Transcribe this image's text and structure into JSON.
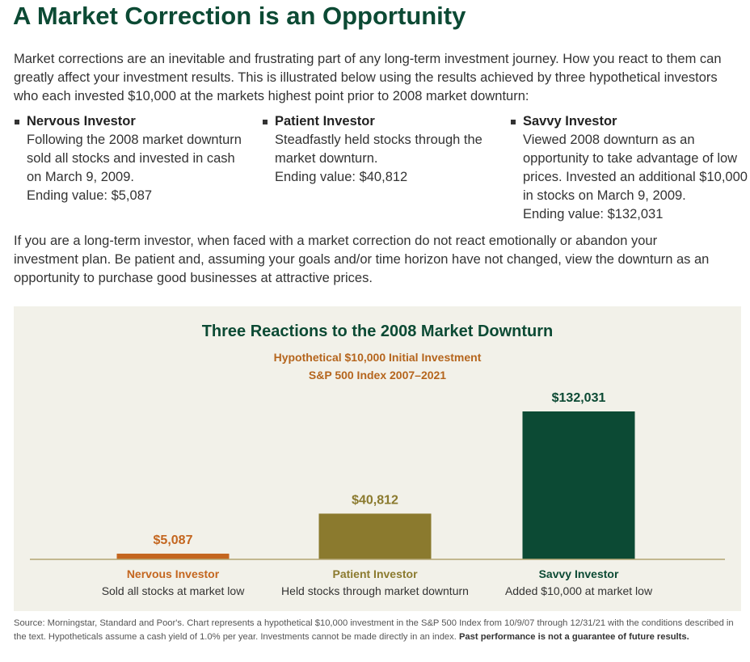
{
  "page": {
    "title": "A Market Correction is an Opportunity",
    "intro": "Market corrections are an inevitable and frustrating part of any long-term investment journey. How you react to them can greatly affect your investment results. This is illustrated below using the results achieved by three hypothetical investors who each invested $10,000 at the markets highest point prior to 2008 market downturn:",
    "investors": [
      {
        "name": "Nervous Investor",
        "description": "Following the 2008 market downturn sold all stocks and invested in cash on March 9, 2009.",
        "ending": "Ending value: $5,087"
      },
      {
        "name": "Patient Investor",
        "description": "Steadfastly held stocks through the market downturn.",
        "ending": "Ending value: $40,812"
      },
      {
        "name": "Savvy Investor",
        "description": "Viewed 2008 downturn as an opportunity to take advantage of low prices. Invested an additional $10,000 in stocks on March 9, 2009.",
        "ending": "Ending value: $132,031"
      }
    ],
    "outro": "If you are a long-term investor, when faced with a market correction do not react emotionally or abandon your investment plan. Be patient and, assuming your goals and/or time horizon have not changed, view the downturn as an opportunity to purchase good businesses at attractive prices.",
    "source": "Source: Morningstar, Standard and Poor's. Chart represents a hypothetical $10,000 investment in the S&P 500 Index from 10/9/07 through 12/31/21 with the conditions described in the text. Hypotheticals assume a cash yield of 1.0% per year. Investments cannot be made directly in an index.",
    "source_bold": "Past performance is not a guarantee of future results."
  },
  "chart_data": {
    "type": "bar",
    "title": "Three Reactions to the 2008 Market Downturn",
    "subtitle_lines": [
      "Hypothetical $10,000 Initial Investment",
      "S&P 500 Index 2007–2021"
    ],
    "categories": [
      "Nervous Investor",
      "Patient Investor",
      "Savvy Investor"
    ],
    "category_sublabels": [
      "Sold all stocks at market low",
      "Held stocks through market downturn",
      "Added $10,000 at market low"
    ],
    "values": [
      5087,
      40812,
      132031
    ],
    "value_labels": [
      "$5,087",
      "$40,812",
      "$132,031"
    ],
    "colors": [
      "#c4661f",
      "#8b7a2e",
      "#0c4a34"
    ],
    "label_colors": [
      "#c4661f",
      "#8b7a2e",
      "#0c4a34"
    ],
    "title_color": "#0c4a34",
    "subtitle_color": "#b5651d",
    "axis_color": "#b3a572",
    "ylim": [
      0,
      132031
    ]
  }
}
